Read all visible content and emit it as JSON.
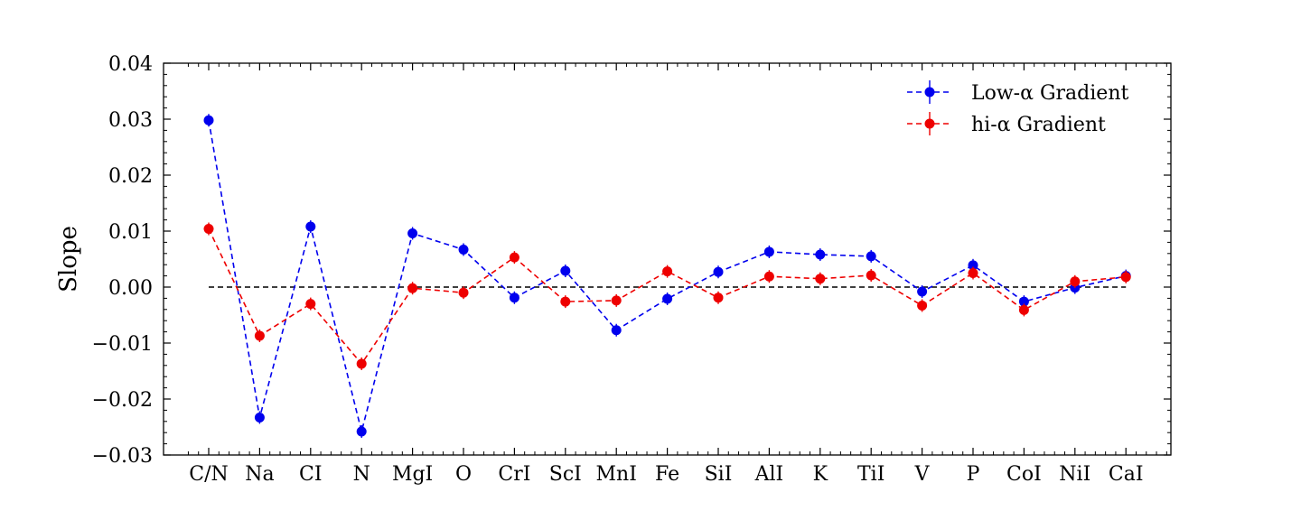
{
  "chart_data": {
    "type": "line",
    "title": "",
    "xlabel": "",
    "ylabel": "Slope",
    "ylim": [
      -0.03,
      0.04
    ],
    "yticks": [
      "0.04",
      "0.03",
      "0.02",
      "0.01",
      "0.00",
      "−0.01",
      "−0.02",
      "−0.03"
    ],
    "yticks_values": [
      0.04,
      0.03,
      0.02,
      0.01,
      0.0,
      -0.01,
      -0.02,
      -0.03
    ],
    "grid": false,
    "legend_position": "top-right",
    "reference_line": 0.0,
    "categories": [
      "C/N",
      "Na",
      "CI",
      "N",
      "MgI",
      "O",
      "CrI",
      "ScI",
      "MnI",
      "Fe",
      "SiI",
      "AlI",
      "K",
      "TiI",
      "V",
      "P",
      "CoI",
      "NiI",
      "CaI"
    ],
    "series": [
      {
        "name": "Low-α Gradient",
        "color": "#0000ee",
        "values": [
          0.0298,
          -0.0233,
          0.0108,
          -0.0258,
          0.0096,
          0.0067,
          -0.0019,
          0.0029,
          -0.0077,
          -0.0021,
          0.0027,
          0.0063,
          0.0058,
          0.0055,
          -0.0008,
          0.0039,
          -0.0026,
          -0.0001,
          0.002
        ]
      },
      {
        "name": "hi-α Gradient",
        "color": "#ee0000",
        "values": [
          0.0104,
          -0.0087,
          -0.003,
          -0.0137,
          -0.0002,
          -0.001,
          0.0053,
          -0.0026,
          -0.0024,
          0.0028,
          -0.0019,
          0.0019,
          0.0015,
          0.0021,
          -0.0033,
          0.0025,
          -0.0041,
          0.001,
          0.0018
        ]
      }
    ]
  }
}
